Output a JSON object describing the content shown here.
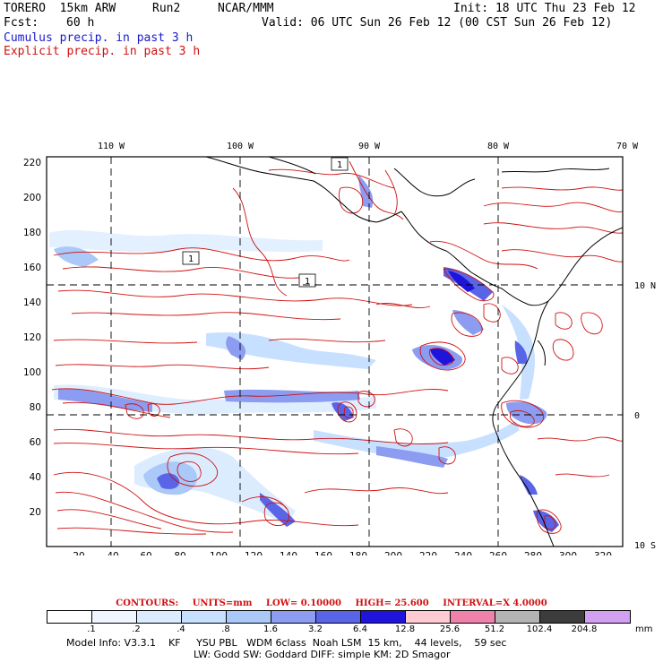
{
  "header": {
    "model": "TORERO  15km ARW",
    "run": "Run2",
    "org": "NCAR/MMM",
    "init": "Init: 18 UTC Thu 23 Feb 12",
    "fcst_label": "Fcst:",
    "fcst_value": "60 h",
    "valid": "Valid: 06 UTC Sun 26 Feb 12 (00 CST Sun 26 Feb 12)",
    "line3": "Cumulus precip. in past 3 h",
    "line4": "Explicit precip. in past 3 h",
    "line3_color": "#1a1acc",
    "line4_color": "#d01010"
  },
  "map": {
    "top_lon_labels": [
      "110 W",
      "100 W",
      "90 W",
      "80 W",
      "70 W"
    ],
    "right_lat_labels": [
      "10 N",
      "0",
      "10 S"
    ],
    "left_ticks": [
      "220",
      "200",
      "180",
      "160",
      "140",
      "120",
      "100",
      "80",
      "60",
      "40",
      "20"
    ],
    "bottom_ticks": [
      "20",
      "40",
      "60",
      "80",
      "100",
      "120",
      "140",
      "160",
      "180",
      "200",
      "220",
      "240",
      "260",
      "280",
      "300",
      "320"
    ],
    "contour_labels": [
      "1",
      "1",
      "1"
    ]
  },
  "contours": {
    "label": "CONTOURS:",
    "units": "UNITS=mm",
    "low": "LOW= 0.10000",
    "high": "HIGH= 25.600",
    "interval": "INTERVAL=X  4.0000"
  },
  "legend": {
    "labels": [
      ".1",
      ".2",
      ".4",
      ".8",
      "1.6",
      "3.2",
      "6.4",
      "12.8",
      "25.6",
      "51.2",
      "102.4",
      "204.8"
    ],
    "unit": "mm",
    "colors": [
      "#ffffff",
      "#f0f6ff",
      "#dcecff",
      "#c8e0ff",
      "#aac8f8",
      "#8c9cf0",
      "#5a64e6",
      "#1e14dc",
      "#ffcad2",
      "#ee82aa",
      "#b4b4b4",
      "#3c3c3c",
      "#d2a0f0"
    ]
  },
  "footer": {
    "line1": "Model Info: V3.3.1    KF     YSU PBL   WDM 6class  Noah LSM  15 km,    44 levels,    59 sec",
    "line2": "LW: Godd SW: Goddard DIFF: simple KM: 2D Smagor"
  }
}
